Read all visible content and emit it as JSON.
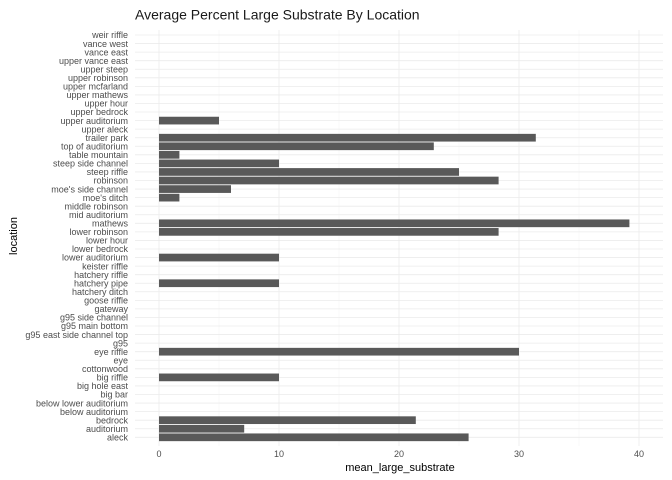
{
  "chart_data": {
    "type": "bar",
    "orientation": "horizontal",
    "title": "Average Percent Large Substrate By Location",
    "xlabel": "mean_large_substrate",
    "ylabel": "location",
    "xlim": [
      0,
      40
    ],
    "xticks": [
      0,
      10,
      20,
      30,
      40
    ],
    "grid": true,
    "bar_color": "#595959",
    "categories": [
      "aleck",
      "auditorium",
      "bedrock",
      "below auditorium",
      "below lower auditorium",
      "big bar",
      "big hole east",
      "big riffle",
      "cottonwood",
      "eye",
      "eye riffle",
      "g95",
      "g95 east side channel top",
      "g95 main bottom",
      "g95 side channel",
      "gateway",
      "goose riffle",
      "hatchery ditch",
      "hatchery pipe",
      "hatchery riffle",
      "keister riffle",
      "lower auditorium",
      "lower bedrock",
      "lower hour",
      "lower robinson",
      "mathews",
      "mid auditorium",
      "middle robinson",
      "moe's ditch",
      "moe's side channel",
      "robinson",
      "steep riffle",
      "steep side channel",
      "table mountain",
      "top of auditorium",
      "trailer park",
      "upper aleck",
      "upper auditorium",
      "upper bedrock",
      "upper hour",
      "upper mathews",
      "upper mcfarland",
      "upper robinson",
      "upper steep",
      "upper vance east",
      "vance east",
      "vance west",
      "weir riffle"
    ],
    "values": [
      25.8,
      7.1,
      21.4,
      0,
      0,
      0,
      0,
      10,
      0,
      0,
      30,
      0,
      0,
      0,
      0,
      0,
      0,
      0,
      10,
      0,
      0,
      10,
      0,
      0,
      28.3,
      39.2,
      0,
      0,
      1.7,
      6,
      28.3,
      25,
      10,
      1.7,
      22.9,
      31.4,
      0,
      5,
      0,
      0,
      0,
      0,
      0,
      0,
      0,
      0,
      0,
      0
    ]
  }
}
